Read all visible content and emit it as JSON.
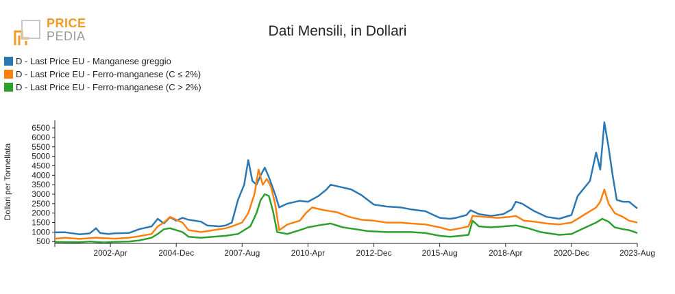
{
  "header": {
    "logo_top": "PRICE",
    "logo_bottom": "PEDIA",
    "title": "Dati Mensili, in Dollari"
  },
  "colors": {
    "blue": "#2a77b4",
    "orange": "#ff7f0e",
    "green": "#2ca02c",
    "logo_orange": "#f29a1f",
    "logo_grey": "#9a9a9a"
  },
  "chart_data": {
    "type": "line",
    "title": "Dati Mensili, in Dollari",
    "ylabel": "Dollari per Tonnellata",
    "xlabel": "",
    "ylim": [
      400,
      6900
    ],
    "y_ticks": [
      500,
      1000,
      1500,
      2000,
      2500,
      3000,
      3500,
      4000,
      4500,
      5000,
      5500,
      6000,
      6500
    ],
    "x_range": [
      "2000-01",
      "2023-08"
    ],
    "x_ticks": [
      "2002-Apr",
      "2004-Dec",
      "2007-Aug",
      "2010-Apr",
      "2012-Dec",
      "2015-Aug",
      "2018-Apr",
      "2020-Dec",
      "2023-Aug"
    ],
    "legend_position": "top-left",
    "grid": false,
    "series": [
      {
        "name": "D - Last Price EU - Manganese greggio",
        "color": "#2a77b4",
        "points": [
          [
            "2000-01",
            980
          ],
          [
            "2000-06",
            990
          ],
          [
            "2001-01",
            880
          ],
          [
            "2001-06",
            930
          ],
          [
            "2001-09",
            1200
          ],
          [
            "2001-11",
            950
          ],
          [
            "2002-03",
            900
          ],
          [
            "2002-06",
            930
          ],
          [
            "2003-01",
            950
          ],
          [
            "2003-06",
            1150
          ],
          [
            "2003-12",
            1300
          ],
          [
            "2004-03",
            1700
          ],
          [
            "2004-06",
            1450
          ],
          [
            "2004-09",
            1780
          ],
          [
            "2004-12",
            1600
          ],
          [
            "2005-03",
            1750
          ],
          [
            "2005-06",
            1650
          ],
          [
            "2005-12",
            1550
          ],
          [
            "2006-03",
            1350
          ],
          [
            "2006-09",
            1300
          ],
          [
            "2006-12",
            1350
          ],
          [
            "2007-03",
            1500
          ],
          [
            "2007-06",
            2700
          ],
          [
            "2007-09",
            3500
          ],
          [
            "2007-11",
            4800
          ],
          [
            "2008-01",
            3700
          ],
          [
            "2008-03",
            3500
          ],
          [
            "2008-05",
            4000
          ],
          [
            "2008-07",
            4400
          ],
          [
            "2008-09",
            3900
          ],
          [
            "2008-12",
            3000
          ],
          [
            "2009-02",
            2300
          ],
          [
            "2009-06",
            2500
          ],
          [
            "2009-12",
            2650
          ],
          [
            "2010-04",
            2600
          ],
          [
            "2010-09",
            2900
          ],
          [
            "2011-01",
            3250
          ],
          [
            "2011-03",
            3500
          ],
          [
            "2011-09",
            3350
          ],
          [
            "2012-01",
            3250
          ],
          [
            "2012-06",
            2950
          ],
          [
            "2012-12",
            2450
          ],
          [
            "2013-06",
            2350
          ],
          [
            "2014-01",
            2300
          ],
          [
            "2014-06",
            2200
          ],
          [
            "2015-01",
            2100
          ],
          [
            "2015-08",
            1750
          ],
          [
            "2016-01",
            1700
          ],
          [
            "2016-04",
            1750
          ],
          [
            "2016-09",
            1900
          ],
          [
            "2016-11",
            2150
          ],
          [
            "2017-03",
            1950
          ],
          [
            "2017-09",
            1850
          ],
          [
            "2018-03",
            1950
          ],
          [
            "2018-07",
            2200
          ],
          [
            "2018-09",
            2600
          ],
          [
            "2018-12",
            2500
          ],
          [
            "2019-03",
            2300
          ],
          [
            "2019-06",
            2100
          ],
          [
            "2019-12",
            1800
          ],
          [
            "2020-06",
            1700
          ],
          [
            "2020-12",
            1900
          ],
          [
            "2021-03",
            2900
          ],
          [
            "2021-06",
            3300
          ],
          [
            "2021-09",
            3700
          ],
          [
            "2021-12",
            5200
          ],
          [
            "2022-02",
            4300
          ],
          [
            "2022-04",
            6800
          ],
          [
            "2022-06",
            5500
          ],
          [
            "2022-08",
            4000
          ],
          [
            "2022-10",
            2700
          ],
          [
            "2023-01",
            2600
          ],
          [
            "2023-04",
            2600
          ],
          [
            "2023-08",
            2250
          ]
        ]
      },
      {
        "name": "D - Last Price EU - Ferro-manganese (C ≤ 2%)",
        "color": "#ff7f0e",
        "points": [
          [
            "2000-01",
            650
          ],
          [
            "2000-06",
            700
          ],
          [
            "2001-01",
            640
          ],
          [
            "2001-09",
            700
          ],
          [
            "2002-06",
            650
          ],
          [
            "2003-01",
            700
          ],
          [
            "2003-06",
            780
          ],
          [
            "2003-12",
            900
          ],
          [
            "2004-03",
            1300
          ],
          [
            "2004-06",
            1500
          ],
          [
            "2004-09",
            1800
          ],
          [
            "2004-12",
            1650
          ],
          [
            "2005-03",
            1500
          ],
          [
            "2005-06",
            1100
          ],
          [
            "2005-12",
            1000
          ],
          [
            "2006-06",
            1100
          ],
          [
            "2006-12",
            1200
          ],
          [
            "2007-03",
            1300
          ],
          [
            "2007-08",
            1500
          ],
          [
            "2007-11",
            2000
          ],
          [
            "2008-02",
            3000
          ],
          [
            "2008-04",
            4300
          ],
          [
            "2008-06",
            3500
          ],
          [
            "2008-08",
            3800
          ],
          [
            "2008-10",
            3400
          ],
          [
            "2008-12",
            2500
          ],
          [
            "2009-02",
            1100
          ],
          [
            "2009-06",
            1400
          ],
          [
            "2009-12",
            1600
          ],
          [
            "2010-03",
            2000
          ],
          [
            "2010-06",
            2300
          ],
          [
            "2010-12",
            2150
          ],
          [
            "2011-06",
            2050
          ],
          [
            "2011-12",
            1800
          ],
          [
            "2012-06",
            1650
          ],
          [
            "2012-12",
            1600
          ],
          [
            "2013-06",
            1500
          ],
          [
            "2014-01",
            1500
          ],
          [
            "2014-06",
            1450
          ],
          [
            "2015-01",
            1400
          ],
          [
            "2015-08",
            1250
          ],
          [
            "2016-01",
            1100
          ],
          [
            "2016-06",
            1200
          ],
          [
            "2016-10",
            1300
          ],
          [
            "2016-12",
            1850
          ],
          [
            "2017-06",
            1800
          ],
          [
            "2017-12",
            1750
          ],
          [
            "2018-06",
            1800
          ],
          [
            "2018-09",
            1850
          ],
          [
            "2019-01",
            1600
          ],
          [
            "2019-06",
            1550
          ],
          [
            "2019-12",
            1450
          ],
          [
            "2020-06",
            1400
          ],
          [
            "2020-12",
            1500
          ],
          [
            "2021-06",
            1900
          ],
          [
            "2021-12",
            2300
          ],
          [
            "2022-02",
            2600
          ],
          [
            "2022-04",
            3250
          ],
          [
            "2022-06",
            2500
          ],
          [
            "2022-09",
            2000
          ],
          [
            "2023-01",
            1800
          ],
          [
            "2023-04",
            1600
          ],
          [
            "2023-08",
            1500
          ]
        ]
      },
      {
        "name": "D - Last Price EU - Ferro-manganese (C > 2%)",
        "color": "#2ca02c",
        "points": [
          [
            "2000-01",
            480
          ],
          [
            "2000-06",
            470
          ],
          [
            "2001-01",
            460
          ],
          [
            "2001-06",
            500
          ],
          [
            "2002-01",
            450
          ],
          [
            "2002-06",
            480
          ],
          [
            "2003-01",
            500
          ],
          [
            "2003-06",
            560
          ],
          [
            "2003-12",
            700
          ],
          [
            "2004-03",
            900
          ],
          [
            "2004-06",
            1150
          ],
          [
            "2004-09",
            1200
          ],
          [
            "2004-12",
            1100
          ],
          [
            "2005-03",
            1000
          ],
          [
            "2005-06",
            750
          ],
          [
            "2005-12",
            700
          ],
          [
            "2006-06",
            750
          ],
          [
            "2006-12",
            800
          ],
          [
            "2007-06",
            900
          ],
          [
            "2007-09",
            1100
          ],
          [
            "2007-12",
            1300
          ],
          [
            "2008-03",
            2000
          ],
          [
            "2008-05",
            2700
          ],
          [
            "2008-07",
            3000
          ],
          [
            "2008-09",
            2900
          ],
          [
            "2008-11",
            2100
          ],
          [
            "2009-01",
            1000
          ],
          [
            "2009-06",
            900
          ],
          [
            "2009-12",
            1100
          ],
          [
            "2010-04",
            1250
          ],
          [
            "2010-09",
            1350
          ],
          [
            "2011-03",
            1450
          ],
          [
            "2011-09",
            1250
          ],
          [
            "2012-03",
            1150
          ],
          [
            "2012-09",
            1050
          ],
          [
            "2013-06",
            1000
          ],
          [
            "2014-01",
            1000
          ],
          [
            "2014-06",
            1000
          ],
          [
            "2015-01",
            950
          ],
          [
            "2015-08",
            800
          ],
          [
            "2016-01",
            750
          ],
          [
            "2016-06",
            800
          ],
          [
            "2016-10",
            850
          ],
          [
            "2016-12",
            1600
          ],
          [
            "2017-03",
            1300
          ],
          [
            "2017-09",
            1250
          ],
          [
            "2018-03",
            1300
          ],
          [
            "2018-09",
            1350
          ],
          [
            "2019-03",
            1200
          ],
          [
            "2019-09",
            1000
          ],
          [
            "2020-06",
            850
          ],
          [
            "2020-12",
            900
          ],
          [
            "2021-06",
            1200
          ],
          [
            "2021-12",
            1500
          ],
          [
            "2022-03",
            1700
          ],
          [
            "2022-06",
            1550
          ],
          [
            "2022-09",
            1250
          ],
          [
            "2023-01",
            1150
          ],
          [
            "2023-04",
            1100
          ],
          [
            "2023-08",
            950
          ]
        ]
      }
    ]
  }
}
